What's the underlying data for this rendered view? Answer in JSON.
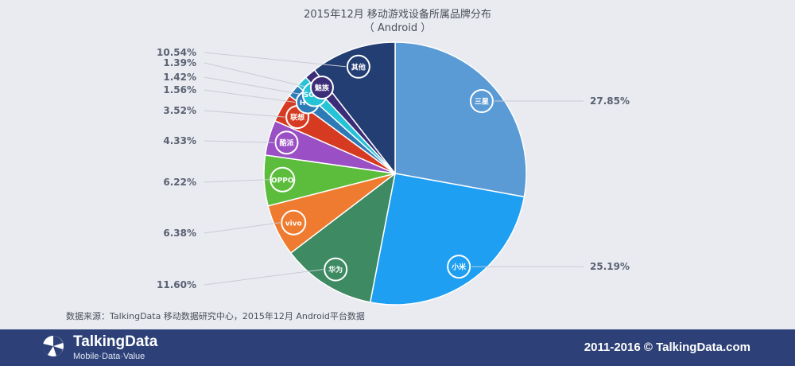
{
  "chart_data": {
    "type": "pie",
    "title": "2015年12月 移动游戏设备所属品牌分布",
    "subtitle": "（ Android ）",
    "start_angle_deg": 0,
    "direction": "clockwise",
    "slices": [
      {
        "label": "三星",
        "value": 27.85,
        "value_label": "27.85%",
        "color": "#5b9bd5"
      },
      {
        "label": "小米",
        "value": 25.19,
        "value_label": "25.19%",
        "color": "#1e9ff2"
      },
      {
        "label": "华为",
        "value": 11.6,
        "value_label": "11.60%",
        "color": "#3d8a63"
      },
      {
        "label": "vivo",
        "value": 6.38,
        "value_label": "6.38%",
        "color": "#ee7b2f"
      },
      {
        "label": "OPPO",
        "value": 6.22,
        "value_label": "6.22%",
        "color": "#5cbd3c"
      },
      {
        "label": "酷派",
        "value": 4.33,
        "value_label": "4.33%",
        "color": "#9a4fc4"
      },
      {
        "label": "联想",
        "value": 3.52,
        "value_label": "3.52%",
        "color": "#d63b22"
      },
      {
        "label": "HTC",
        "value": 1.56,
        "value_label": "1.56%",
        "color": "#2d7bb6"
      },
      {
        "label": "SONY",
        "value": 1.42,
        "value_label": "1.42%",
        "color": "#25c3d6"
      },
      {
        "label": "魅族",
        "value": 1.39,
        "value_label": "1.39%",
        "color": "#3c2d78"
      },
      {
        "label": "其他",
        "value": 10.54,
        "value_label": "10.54%",
        "color": "#233e73"
      }
    ]
  },
  "source_text": "数据来源：TalkingData 移动数据研究中心，2015年12月 Android平台数据",
  "footer": {
    "brand": "TalkingData",
    "tagline": "Mobile·Data·Value",
    "copyright": "2011-2016 © TalkingData.com"
  }
}
